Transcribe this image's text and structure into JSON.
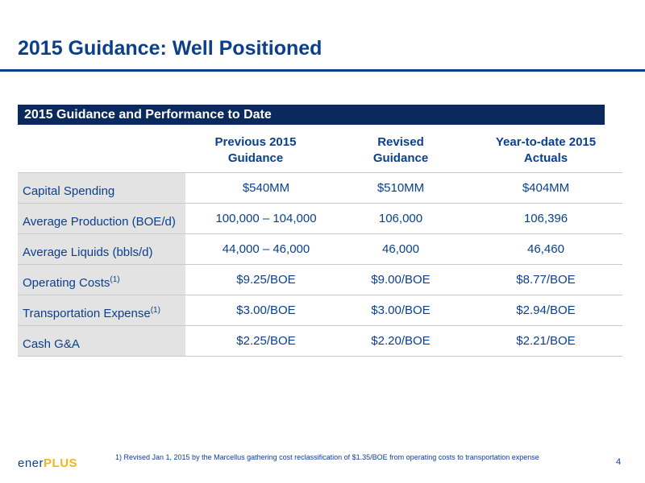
{
  "slide": {
    "title": "2015 Guidance: Well Positioned",
    "page_number": "4"
  },
  "section": {
    "header": "2015 Guidance and Performance to Date"
  },
  "columns": [
    {
      "line1": "Previous 2015",
      "line2": "Guidance"
    },
    {
      "line1": "Revised",
      "line2": "Guidance"
    },
    {
      "line1": "Year-to-date 2015",
      "line2": "Actuals"
    }
  ],
  "rows": [
    {
      "label": "Capital Spending",
      "note": "",
      "values": [
        "$540MM",
        "$510MM",
        "$404MM"
      ]
    },
    {
      "label": "Average Production (BOE/d)",
      "note": "",
      "values": [
        "100,000 – 104,000",
        "106,000",
        "106,396"
      ]
    },
    {
      "label": "Average Liquids (bbls/d)",
      "note": "",
      "values": [
        "44,000 – 46,000",
        "46,000",
        "46,460"
      ]
    },
    {
      "label": "Operating Costs",
      "note": "(1)",
      "values": [
        "$9.25/BOE",
        "$9.00/BOE",
        "$8.77/BOE"
      ]
    },
    {
      "label": "Transportation Expense",
      "note": "(1)",
      "values": [
        "$3.00/BOE",
        "$3.00/BOE",
        "$2.94/BOE"
      ]
    },
    {
      "label": "Cash G&A",
      "note": "",
      "values": [
        "$2.25/BOE",
        "$2.20/BOE",
        "$2.21/BOE"
      ]
    }
  ],
  "footnote": "1)   Revised Jan 1, 2015 by the Marcellus gathering cost reclassification of $1.35/BOE from operating costs to transportation expense",
  "logo": {
    "text_main": "ener",
    "text_accent": "PLUS"
  },
  "colors": {
    "brand_blue": "#0b3f8c",
    "header_navy": "#0a2a5e",
    "label_gray": "#e3e3e3",
    "logo_gold": "#f2b51c"
  }
}
